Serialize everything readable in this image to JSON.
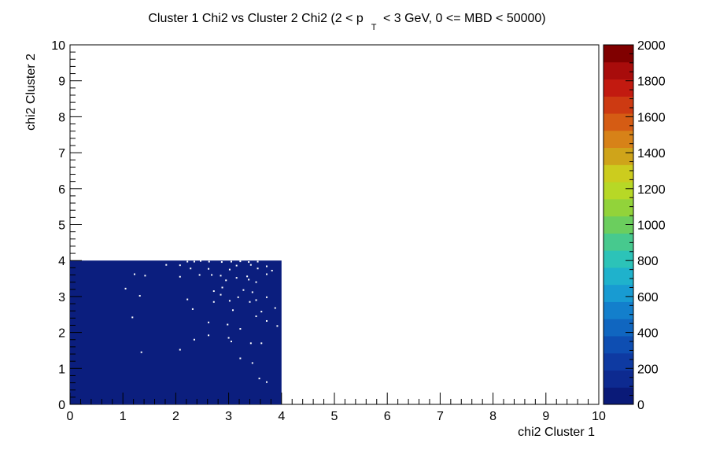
{
  "chart_data": {
    "type": "heatmap",
    "title": {
      "prefix": "Cluster 1 Chi2 vs Cluster 2 Chi2  (2 < p",
      "subscript": "T",
      "suffix": " < 3 GeV, 0 <= MBD < 50000)"
    },
    "xlabel": "chi2 Cluster 1",
    "ylabel": "chi2 Cluster 2",
    "xlim": [
      0,
      10
    ],
    "ylim": [
      0,
      10
    ],
    "x_ticks": [
      "0",
      "1",
      "2",
      "3",
      "4",
      "5",
      "6",
      "7",
      "8",
      "9",
      "10"
    ],
    "y_ticks": [
      "0",
      "1",
      "2",
      "3",
      "4",
      "5",
      "6",
      "7",
      "8",
      "9",
      "10"
    ],
    "z_range": [
      0,
      2000
    ],
    "z_ticks": [
      "0",
      "200",
      "400",
      "600",
      "800",
      "1000",
      "1200",
      "1400",
      "1600",
      "1800",
      "2000"
    ],
    "filled_region": {
      "x": [
        0,
        4
      ],
      "y": [
        0,
        4
      ],
      "color": "#0b1e7e",
      "z_approx": 40
    },
    "empty_bins": [
      [
        2.22,
        3.97
      ],
      [
        2.35,
        3.97
      ],
      [
        2.47,
        3.99
      ],
      [
        2.63,
        3.97
      ],
      [
        2.87,
        3.96
      ],
      [
        3.05,
        3.97
      ],
      [
        3.22,
        3.98
      ],
      [
        3.38,
        3.96
      ],
      [
        3.55,
        3.97
      ],
      [
        1.82,
        3.88
      ],
      [
        2.08,
        3.87
      ],
      [
        3.15,
        3.86
      ],
      [
        3.42,
        3.88
      ],
      [
        3.72,
        3.84
      ],
      [
        2.28,
        3.78
      ],
      [
        2.62,
        3.77
      ],
      [
        3.02,
        3.75
      ],
      [
        3.55,
        3.78
      ],
      [
        3.82,
        3.72
      ],
      [
        1.22,
        3.62
      ],
      [
        1.42,
        3.58
      ],
      [
        2.08,
        3.55
      ],
      [
        2.45,
        3.6
      ],
      [
        2.68,
        3.6
      ],
      [
        2.85,
        3.58
      ],
      [
        3.15,
        3.52
      ],
      [
        3.35,
        3.56
      ],
      [
        3.72,
        3.62
      ],
      [
        2.95,
        3.45
      ],
      [
        3.38,
        3.47
      ],
      [
        3.52,
        3.4
      ],
      [
        1.05,
        3.22
      ],
      [
        2.88,
        3.25
      ],
      [
        2.72,
        3.15
      ],
      [
        3.28,
        3.18
      ],
      [
        3.45,
        3.12
      ],
      [
        1.32,
        3.02
      ],
      [
        2.85,
        3.05
      ],
      [
        3.18,
        2.98
      ],
      [
        3.52,
        2.9
      ],
      [
        3.72,
        2.98
      ],
      [
        2.22,
        2.92
      ],
      [
        2.72,
        2.85
      ],
      [
        3.02,
        2.88
      ],
      [
        3.4,
        2.85
      ],
      [
        2.32,
        2.65
      ],
      [
        3.08,
        2.62
      ],
      [
        3.88,
        2.68
      ],
      [
        3.62,
        2.58
      ],
      [
        1.18,
        2.42
      ],
      [
        3.52,
        2.45
      ],
      [
        3.72,
        2.32
      ],
      [
        2.62,
        2.28
      ],
      [
        2.98,
        2.22
      ],
      [
        3.22,
        2.1
      ],
      [
        3.92,
        2.18
      ],
      [
        2.62,
        1.92
      ],
      [
        3.0,
        1.85
      ],
      [
        1.35,
        1.45
      ],
      [
        3.42,
        1.7
      ],
      [
        3.62,
        1.7
      ],
      [
        3.22,
        1.28
      ],
      [
        3.45,
        1.15
      ],
      [
        2.08,
        1.52
      ],
      [
        2.35,
        1.8
      ],
      [
        3.05,
        1.75
      ],
      [
        3.58,
        0.72
      ],
      [
        3.72,
        0.62
      ]
    ],
    "palette": [
      "#0a1a78",
      "#0d2a90",
      "#0e3aa2",
      "#0e4eb2",
      "#1066c0",
      "#137fcc",
      "#189bd2",
      "#1fb2cc",
      "#2cc3b8",
      "#47c98e",
      "#6bce5e",
      "#92d33a",
      "#b7d826",
      "#cccc1e",
      "#cfa41a",
      "#d78218",
      "#d55c14",
      "#cd3a12",
      "#c21a10",
      "#a80c0b",
      "#800000"
    ],
    "grid": false,
    "legend": "none"
  }
}
